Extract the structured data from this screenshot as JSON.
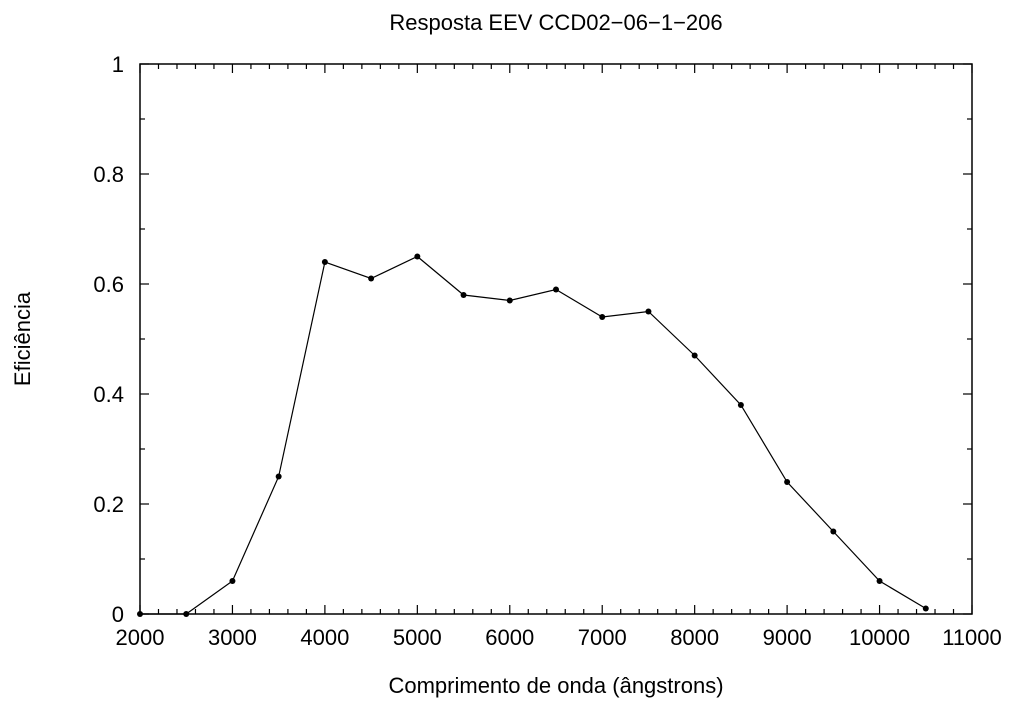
{
  "chart_data": {
    "type": "line",
    "title": "Resposta EEV CCD02−06−1−206",
    "xlabel": "Comprimento de onda (ângstrons)",
    "ylabel": "Eficiência",
    "xlim": [
      2000,
      11000
    ],
    "ylim": [
      0,
      1
    ],
    "xticks": [
      2000,
      3000,
      4000,
      5000,
      6000,
      7000,
      8000,
      9000,
      10000,
      11000
    ],
    "xtick_labels": [
      "2000",
      "3000",
      "4000",
      "5000",
      "6000",
      "7000",
      "8000",
      "9000",
      "10000",
      "11000"
    ],
    "yticks": [
      0,
      0.2,
      0.4,
      0.6,
      0.8,
      1
    ],
    "ytick_labels": [
      "0",
      "0.2",
      "0.4",
      "0.6",
      "0.8",
      "1"
    ],
    "grid": false,
    "series": [
      {
        "x": [
          2000,
          2500,
          3000,
          3500,
          4000,
          4500,
          5000,
          5500,
          6000,
          6500,
          7000,
          7500,
          8000,
          8500,
          9000,
          9500,
          10000,
          10500
        ],
        "y": [
          0,
          0,
          0.06,
          0.25,
          0.64,
          0.61,
          0.65,
          0.58,
          0.57,
          0.59,
          0.54,
          0.55,
          0.47,
          0.38,
          0.24,
          0.15,
          0.06,
          0.01
        ],
        "color": "#000000",
        "marker": "circle"
      }
    ]
  }
}
